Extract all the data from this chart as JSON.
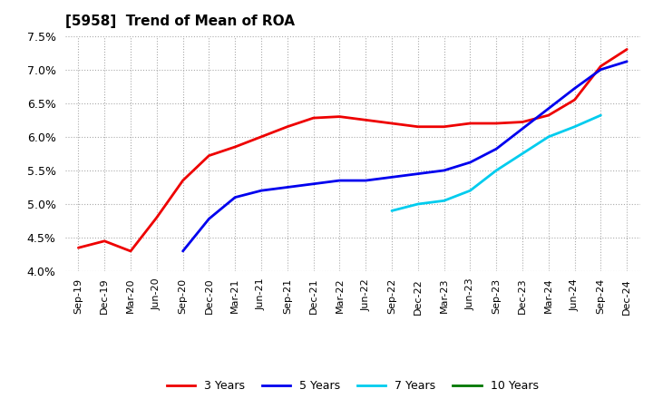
{
  "title": "[5958]  Trend of Mean of ROA",
  "background_color": "#ffffff",
  "grid_color": "#aaaaaa",
  "ylim": [
    0.04,
    0.075
  ],
  "yticks": [
    0.04,
    0.045,
    0.05,
    0.055,
    0.06,
    0.065,
    0.07,
    0.075
  ],
  "x_labels": [
    "Sep-19",
    "Dec-19",
    "Mar-20",
    "Jun-20",
    "Sep-20",
    "Dec-20",
    "Mar-21",
    "Jun-21",
    "Sep-21",
    "Dec-21",
    "Mar-22",
    "Jun-22",
    "Sep-22",
    "Dec-22",
    "Mar-23",
    "Jun-23",
    "Sep-23",
    "Dec-23",
    "Mar-24",
    "Jun-24",
    "Sep-24",
    "Dec-24"
  ],
  "series": [
    {
      "key": "3y",
      "label": "3 Years",
      "color": "#ee0000",
      "data": [
        0.0435,
        0.0445,
        0.043,
        0.048,
        0.0535,
        0.0572,
        0.0585,
        0.06,
        0.0615,
        0.0628,
        0.063,
        0.0625,
        0.062,
        0.0615,
        0.0615,
        0.062,
        0.062,
        0.0622,
        0.0632,
        0.0655,
        0.0705,
        0.073
      ]
    },
    {
      "key": "5y",
      "label": "5 Years",
      "color": "#0000ee",
      "data": [
        null,
        null,
        null,
        null,
        0.043,
        0.0478,
        0.051,
        0.052,
        0.0525,
        0.053,
        0.0535,
        0.0535,
        0.054,
        0.0545,
        0.055,
        0.0562,
        0.0582,
        0.0612,
        0.0642,
        0.0672,
        0.07,
        0.0712
      ]
    },
    {
      "key": "7y",
      "label": "7 Years",
      "color": "#00ccee",
      "data": [
        null,
        null,
        null,
        null,
        null,
        null,
        null,
        null,
        null,
        null,
        null,
        null,
        0.049,
        0.05,
        0.0505,
        0.052,
        0.055,
        0.0575,
        0.06,
        0.0615,
        0.0632,
        null
      ]
    },
    {
      "key": "10y",
      "label": "10 Years",
      "color": "#007700",
      "data": [
        null,
        null,
        null,
        null,
        null,
        null,
        null,
        null,
        null,
        null,
        null,
        null,
        null,
        null,
        null,
        null,
        null,
        null,
        null,
        null,
        null,
        null
      ]
    }
  ]
}
